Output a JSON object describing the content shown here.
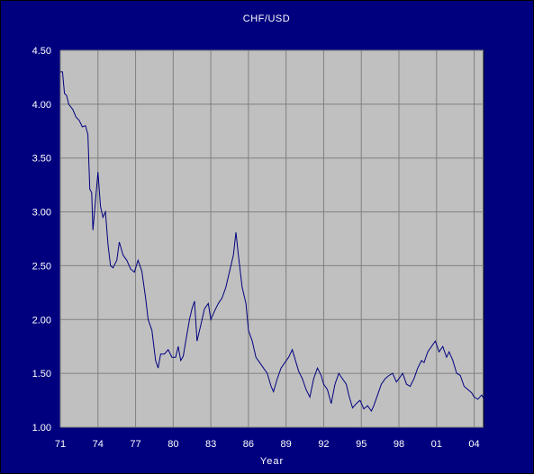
{
  "chart_data": {
    "type": "line",
    "title": "CHF/USD",
    "xlabel": "Year",
    "ylabel": "",
    "ylim": [
      1.0,
      4.5
    ],
    "xlim": [
      1971,
      2004.75
    ],
    "grid": true,
    "x_tick_labels": [
      "71",
      "74",
      "77",
      "80",
      "83",
      "86",
      "89",
      "92",
      "95",
      "98",
      "01",
      "04"
    ],
    "x_tick_values": [
      1971,
      1974,
      1977,
      1980,
      1983,
      1986,
      1989,
      1992,
      1995,
      1998,
      2001,
      2004
    ],
    "y_tick_labels": [
      "1.00",
      "1.50",
      "2.00",
      "2.50",
      "3.00",
      "3.50",
      "4.00",
      "4.50"
    ],
    "y_tick_values": [
      1.0,
      1.5,
      2.0,
      2.5,
      3.0,
      3.5,
      4.0,
      4.5
    ],
    "colors": {
      "background": "#000080",
      "plot_area": "#c0c0c0",
      "gridline": "#808080",
      "line": "#000080",
      "text": "#ffffff"
    },
    "series": [
      {
        "values": [
          [
            1971.0,
            4.3
          ],
          [
            1971.17,
            4.3
          ],
          [
            1971.33,
            4.1
          ],
          [
            1971.5,
            4.08
          ],
          [
            1971.67,
            4.0
          ],
          [
            1972.0,
            3.95
          ],
          [
            1972.25,
            3.88
          ],
          [
            1972.5,
            3.85
          ],
          [
            1972.75,
            3.79
          ],
          [
            1973.0,
            3.8
          ],
          [
            1973.2,
            3.72
          ],
          [
            1973.35,
            3.21
          ],
          [
            1973.5,
            3.18
          ],
          [
            1973.6,
            2.83
          ],
          [
            1973.8,
            3.1
          ],
          [
            1974.0,
            3.37
          ],
          [
            1974.2,
            3.05
          ],
          [
            1974.4,
            2.95
          ],
          [
            1974.6,
            3.0
          ],
          [
            1974.8,
            2.7
          ],
          [
            1975.0,
            2.5
          ],
          [
            1975.2,
            2.48
          ],
          [
            1975.5,
            2.55
          ],
          [
            1975.7,
            2.72
          ],
          [
            1976.0,
            2.6
          ],
          [
            1976.3,
            2.55
          ],
          [
            1976.6,
            2.47
          ],
          [
            1976.9,
            2.44
          ],
          [
            1977.2,
            2.55
          ],
          [
            1977.5,
            2.45
          ],
          [
            1977.8,
            2.2
          ],
          [
            1978.0,
            2.0
          ],
          [
            1978.3,
            1.9
          ],
          [
            1978.6,
            1.62
          ],
          [
            1978.8,
            1.55
          ],
          [
            1979.0,
            1.68
          ],
          [
            1979.3,
            1.68
          ],
          [
            1979.6,
            1.72
          ],
          [
            1979.9,
            1.65
          ],
          [
            1980.2,
            1.65
          ],
          [
            1980.4,
            1.75
          ],
          [
            1980.6,
            1.62
          ],
          [
            1980.8,
            1.66
          ],
          [
            1981.0,
            1.8
          ],
          [
            1981.3,
            2.0
          ],
          [
            1981.5,
            2.1
          ],
          [
            1981.7,
            2.17
          ],
          [
            1981.9,
            1.8
          ],
          [
            1982.2,
            1.95
          ],
          [
            1982.5,
            2.1
          ],
          [
            1982.8,
            2.15
          ],
          [
            1983.0,
            2.0
          ],
          [
            1983.3,
            2.08
          ],
          [
            1983.6,
            2.15
          ],
          [
            1983.9,
            2.2
          ],
          [
            1984.2,
            2.3
          ],
          [
            1984.5,
            2.45
          ],
          [
            1984.8,
            2.6
          ],
          [
            1985.0,
            2.81
          ],
          [
            1985.2,
            2.6
          ],
          [
            1985.5,
            2.3
          ],
          [
            1985.8,
            2.15
          ],
          [
            1986.0,
            1.9
          ],
          [
            1986.3,
            1.8
          ],
          [
            1986.6,
            1.65
          ],
          [
            1986.9,
            1.6
          ],
          [
            1987.2,
            1.55
          ],
          [
            1987.5,
            1.5
          ],
          [
            1987.8,
            1.38
          ],
          [
            1988.0,
            1.33
          ],
          [
            1988.3,
            1.45
          ],
          [
            1988.6,
            1.55
          ],
          [
            1988.9,
            1.6
          ],
          [
            1989.2,
            1.65
          ],
          [
            1989.5,
            1.72
          ],
          [
            1989.8,
            1.6
          ],
          [
            1990.0,
            1.52
          ],
          [
            1990.3,
            1.45
          ],
          [
            1990.6,
            1.35
          ],
          [
            1990.9,
            1.28
          ],
          [
            1991.2,
            1.45
          ],
          [
            1991.5,
            1.55
          ],
          [
            1991.8,
            1.48
          ],
          [
            1992.0,
            1.4
          ],
          [
            1992.3,
            1.35
          ],
          [
            1992.6,
            1.22
          ],
          [
            1992.9,
            1.4
          ],
          [
            1993.2,
            1.5
          ],
          [
            1993.5,
            1.45
          ],
          [
            1993.8,
            1.4
          ],
          [
            1994.0,
            1.3
          ],
          [
            1994.3,
            1.18
          ],
          [
            1994.6,
            1.22
          ],
          [
            1994.9,
            1.25
          ],
          [
            1995.2,
            1.17
          ],
          [
            1995.5,
            1.2
          ],
          [
            1995.8,
            1.15
          ],
          [
            1996.0,
            1.2
          ],
          [
            1996.3,
            1.3
          ],
          [
            1996.6,
            1.4
          ],
          [
            1996.9,
            1.45
          ],
          [
            1997.2,
            1.48
          ],
          [
            1997.5,
            1.5
          ],
          [
            1997.8,
            1.42
          ],
          [
            1998.0,
            1.45
          ],
          [
            1998.3,
            1.5
          ],
          [
            1998.6,
            1.4
          ],
          [
            1998.9,
            1.38
          ],
          [
            1999.2,
            1.45
          ],
          [
            1999.5,
            1.55
          ],
          [
            1999.8,
            1.62
          ],
          [
            2000.0,
            1.6
          ],
          [
            2000.3,
            1.7
          ],
          [
            2000.6,
            1.75
          ],
          [
            2000.9,
            1.8
          ],
          [
            2001.2,
            1.7
          ],
          [
            2001.5,
            1.75
          ],
          [
            2001.8,
            1.65
          ],
          [
            2002.0,
            1.7
          ],
          [
            2002.3,
            1.62
          ],
          [
            2002.6,
            1.5
          ],
          [
            2002.9,
            1.48
          ],
          [
            2003.2,
            1.38
          ],
          [
            2003.5,
            1.35
          ],
          [
            2003.8,
            1.32
          ],
          [
            2004.0,
            1.28
          ],
          [
            2004.3,
            1.26
          ],
          [
            2004.6,
            1.3
          ],
          [
            2004.75,
            1.27
          ]
        ]
      }
    ]
  }
}
